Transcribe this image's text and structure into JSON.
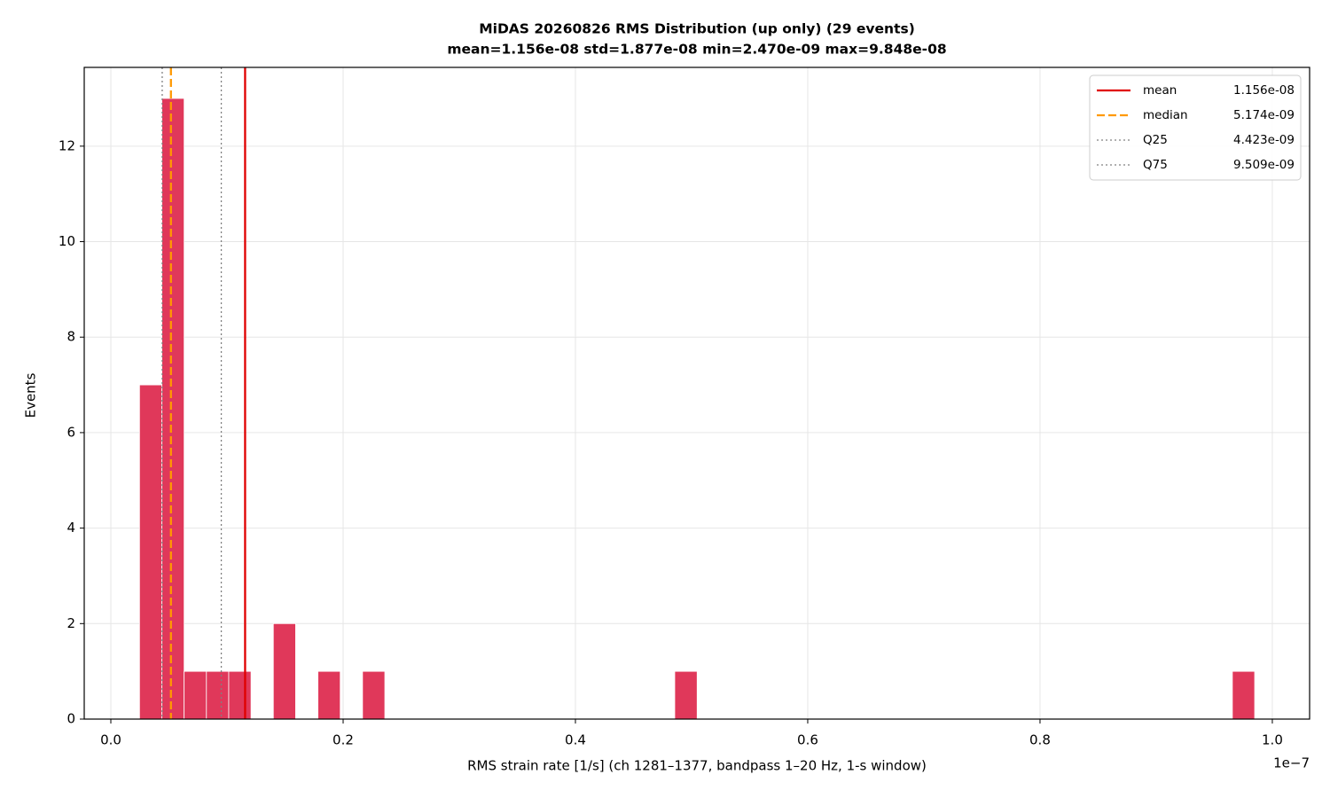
{
  "chart_data": {
    "type": "histogram",
    "title": "MiDAS 20260826  RMS Distribution  (up only)  (29 events)",
    "subtitle": "mean=1.156e-08  std=1.877e-08  min=2.470e-09  max=9.848e-08",
    "x_label": "RMS strain rate [1/s]  (ch 1281–1377, bandpass 1–20 Hz, 1-s window)",
    "x_offset_label": "1e−7",
    "y_label": "Events",
    "bins": [
      0.0247,
      0.0439,
      0.0631,
      0.0823,
      0.1015,
      0.1207,
      0.1399,
      0.1591,
      0.1783,
      0.1975,
      0.2167,
      0.2359,
      0.2551,
      0.2743,
      0.2935,
      0.3127,
      0.3319,
      0.3511,
      0.3703,
      0.3895,
      0.4087,
      0.4279,
      0.4471,
      0.4663,
      0.4855,
      0.5048,
      0.524,
      0.5432,
      0.5624,
      0.5816,
      0.6008,
      0.62,
      0.6392,
      0.6584,
      0.6776,
      0.6968,
      0.716,
      0.7352,
      0.7544,
      0.7736,
      0.7928,
      0.812,
      0.8312,
      0.8504,
      0.8696,
      0.8888,
      0.908,
      0.9272,
      0.9464,
      0.9656,
      0.9848
    ],
    "values": [
      7,
      13,
      1,
      1,
      1,
      0,
      2,
      0,
      1,
      0,
      1,
      0,
      0,
      0,
      0,
      0,
      0,
      0,
      0,
      0,
      0,
      0,
      0,
      0,
      1,
      0,
      0,
      0,
      0,
      0,
      0,
      0,
      0,
      0,
      0,
      0,
      0,
      0,
      0,
      0,
      0,
      0,
      0,
      0,
      0,
      0,
      0,
      0,
      0,
      1
    ],
    "color": "#e0385a",
    "reference_lines": [
      {
        "name": "mean",
        "label": "1.156e-08",
        "value": 0.1156,
        "color": "#e00000",
        "style": "solid"
      },
      {
        "name": "median",
        "label": "5.174e-09",
        "value": 0.05174,
        "color": "#ff9900",
        "style": "dashed"
      },
      {
        "name": "Q25",
        "label": "4.423e-09",
        "value": 0.04423,
        "color": "#808080",
        "style": "dotted"
      },
      {
        "name": "Q75",
        "label": "9.509e-09",
        "value": 0.09509,
        "color": "#808080",
        "style": "dotted"
      }
    ],
    "xlim": [
      -0.0229,
      1.0321
    ],
    "xticks": [
      {
        "value": 0,
        "label": "0.0"
      },
      0.2,
      0.4,
      0.6,
      0.8,
      {
        "value": 1,
        "label": "1.0"
      }
    ],
    "ylim": [
      0,
      13.65
    ],
    "yticks": [
      0,
      2,
      4,
      6,
      8,
      10,
      12
    ],
    "grid": true,
    "legend": "upper right"
  }
}
